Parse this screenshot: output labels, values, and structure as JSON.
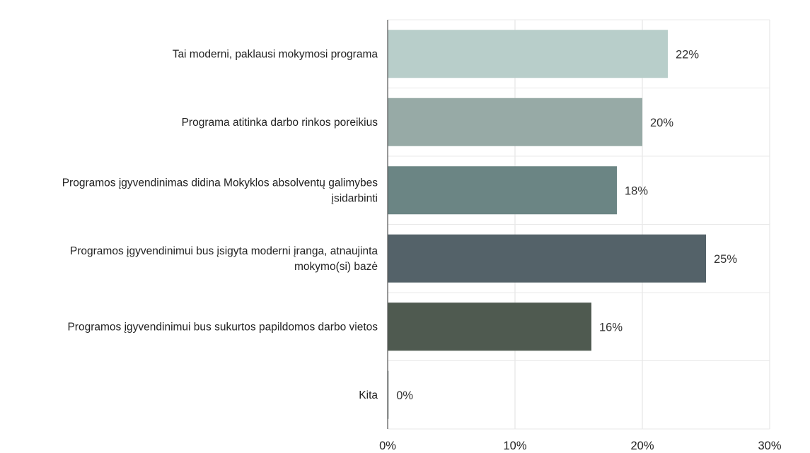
{
  "chart_data": {
    "type": "bar",
    "orientation": "horizontal",
    "categories": [
      [
        "Tai moderni, paklausi mokymosi programa"
      ],
      [
        "Programa atitinka darbo rinkos poreikius"
      ],
      [
        "Programos įgyvendinimas didina Mokyklos absolventų galimybes",
        "įsidarbinti"
      ],
      [
        "Programos įgyvendinimui bus įsigyta moderni įranga, atnaujinta",
        "mokymo(si) bazė"
      ],
      [
        "Programos įgyvendinimui bus sukurtos papildomos darbo vietos"
      ],
      [
        "Kita"
      ]
    ],
    "values": [
      22,
      20,
      18,
      25,
      16,
      0
    ],
    "value_labels": [
      "22%",
      "20%",
      "18%",
      "25%",
      "16%",
      "0%"
    ],
    "colors": [
      "#b8ceca",
      "#97aaa6",
      "#6b8584",
      "#546269",
      "#4f5a50",
      "#6b7a78"
    ],
    "xlim": [
      0,
      30
    ],
    "xticks": [
      0,
      10,
      20,
      30
    ],
    "xtick_labels": [
      "0%",
      "10%",
      "20%",
      "30%"
    ],
    "grid": true,
    "legend": "none",
    "title": "",
    "xlabel": "",
    "ylabel": ""
  }
}
